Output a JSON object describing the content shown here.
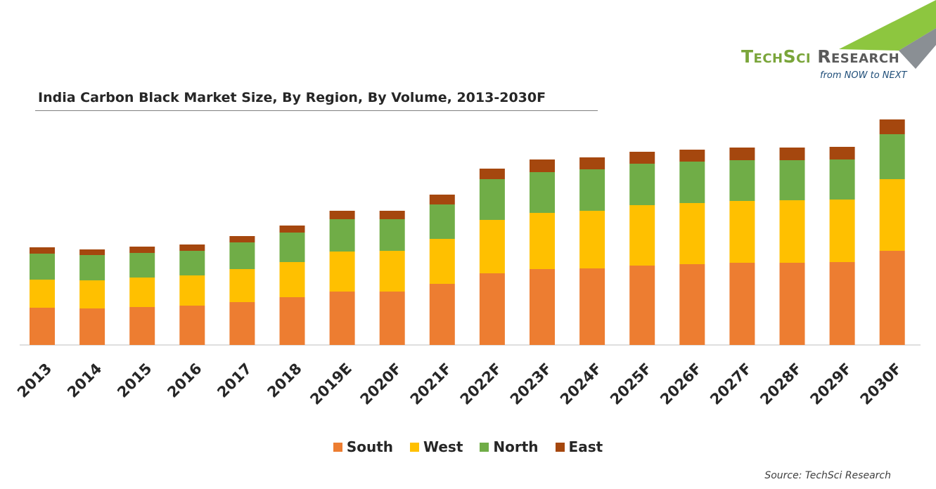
{
  "brand": {
    "name_green": "TechSci",
    "name_gray": "Research",
    "tagline": "from NOW to NEXT",
    "green": "#8dc63f",
    "gray": "#8a8f94"
  },
  "source": "Source: TechSci Research",
  "chart_data": {
    "type": "bar",
    "stacked": true,
    "title": "India Carbon Black Market Size, By Region, By Volume, 2013-2030F",
    "xlabel": "",
    "ylabel": "",
    "ylim": [
      0,
      320
    ],
    "grid": false,
    "legend_position": "bottom",
    "categories": [
      "2013",
      "2014",
      "2015",
      "2016",
      "2017",
      "2018",
      "2019E",
      "2020F",
      "2021F",
      "2022F",
      "2023F",
      "2024F",
      "2025F",
      "2026F",
      "2027F",
      "2028F",
      "2029F",
      "2030F"
    ],
    "series": [
      {
        "name": "South",
        "color": "#ed7d31",
        "values": [
          53,
          52,
          54,
          56,
          61,
          68,
          76,
          76,
          87,
          102,
          108,
          109,
          113,
          115,
          117,
          117,
          118,
          134
        ]
      },
      {
        "name": "West",
        "color": "#ffc000",
        "values": [
          40,
          40,
          42,
          43,
          47,
          50,
          57,
          58,
          64,
          76,
          80,
          82,
          86,
          87,
          88,
          89,
          89,
          102
        ]
      },
      {
        "name": "North",
        "color": "#70ad47",
        "values": [
          37,
          36,
          35,
          35,
          38,
          42,
          46,
          45,
          49,
          58,
          58,
          59,
          59,
          59,
          58,
          57,
          57,
          64
        ]
      },
      {
        "name": "East",
        "color": "#a5470e",
        "values": [
          9,
          8,
          9,
          9,
          9,
          10,
          12,
          12,
          14,
          15,
          18,
          17,
          17,
          17,
          18,
          18,
          18,
          21
        ]
      }
    ]
  }
}
